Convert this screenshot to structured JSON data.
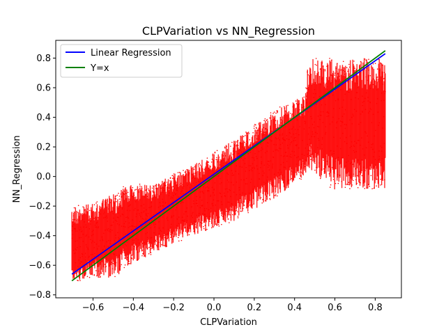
{
  "chart_data": {
    "type": "scatter",
    "title": "CLPVariation vs NN_Regression",
    "xlabel": "CLPVariation",
    "ylabel": "NN_Regression",
    "xlim": [
      -0.785,
      0.93
    ],
    "ylim": [
      -0.82,
      0.92
    ],
    "xticks": [
      -0.6,
      -0.4,
      -0.2,
      0.0,
      0.2,
      0.4,
      0.6,
      0.8
    ],
    "yticks": [
      -0.8,
      -0.6,
      -0.4,
      -0.2,
      0.0,
      0.2,
      0.4,
      0.6,
      0.8
    ],
    "xtick_labels": [
      "−0.6",
      "−0.4",
      "−0.2",
      "0.0",
      "0.2",
      "0.4",
      "0.6",
      "0.8"
    ],
    "ytick_labels": [
      "−0.8",
      "−0.6",
      "−0.4",
      "−0.2",
      "0.0",
      "0.2",
      "0.4",
      "0.6",
      "0.8"
    ],
    "grid": false,
    "legend_position": "top-left",
    "scatter": {
      "color": "#ff0000",
      "x_range": [
        -0.705,
        0.85
      ],
      "y_clip": [
        -0.725,
        0.8
      ],
      "band": [
        {
          "x": -0.705,
          "low": -0.72,
          "high": -0.2
        },
        {
          "x": -0.6,
          "low": -0.69,
          "high": -0.18
        },
        {
          "x": -0.47,
          "low": -0.68,
          "high": -0.1
        },
        {
          "x": -0.45,
          "low": -0.62,
          "high": -0.05
        },
        {
          "x": -0.3,
          "low": -0.52,
          "high": -0.05
        },
        {
          "x": -0.1,
          "low": -0.4,
          "high": 0.08
        },
        {
          "x": 0.1,
          "low": -0.3,
          "high": 0.25
        },
        {
          "x": 0.3,
          "low": -0.15,
          "high": 0.45
        },
        {
          "x": 0.45,
          "low": 0.0,
          "high": 0.55
        },
        {
          "x": 0.47,
          "low": 0.05,
          "high": 0.8
        },
        {
          "x": 0.6,
          "low": -0.1,
          "high": 0.8
        },
        {
          "x": 0.85,
          "low": -0.08,
          "high": 0.8
        }
      ]
    },
    "series": [
      {
        "name": "Linear Regression",
        "type": "line",
        "color": "#0000ff",
        "x": [
          -0.705,
          0.85
        ],
        "y": [
          -0.66,
          0.83
        ]
      },
      {
        "name": "Y=x",
        "type": "line",
        "color": "#008000",
        "x": [
          -0.705,
          0.85
        ],
        "y": [
          -0.705,
          0.85
        ]
      }
    ]
  }
}
